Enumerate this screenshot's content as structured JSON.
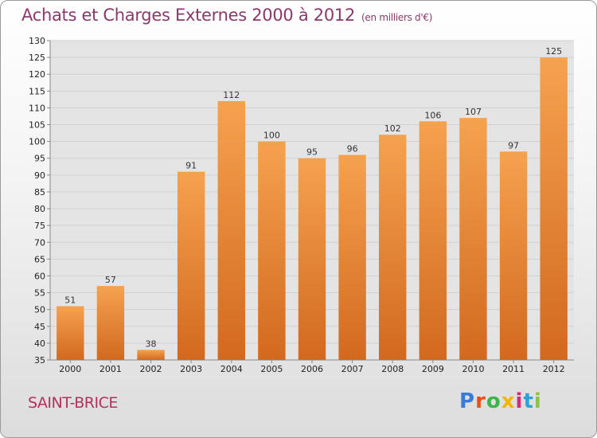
{
  "header": {
    "title": "Achats et Charges Externes 2000 à 2012",
    "unit": "(en milliers d'€)"
  },
  "footer": {
    "city": "SAINT-BRICE",
    "brand": "Proxiti",
    "brand_colors": [
      "#3a7bd5",
      "#e94e1b",
      "#3cb44b",
      "#f4b400",
      "#d62976",
      "#2ba3d9",
      "#8bc34a"
    ]
  },
  "colors": {
    "bar_top": "#f5a24f",
    "bar_bottom": "#d2691e",
    "axis": "#888888",
    "grid": "#d0d0d0",
    "plot_bg": "#e4e4e4"
  },
  "chart_data": {
    "type": "bar",
    "categories": [
      "2000",
      "2001",
      "2002",
      "2003",
      "2004",
      "2005",
      "2006",
      "2007",
      "2008",
      "2009",
      "2010",
      "2011",
      "2012"
    ],
    "values": [
      51,
      57,
      38,
      91,
      112,
      100,
      95,
      96,
      102,
      106,
      107,
      97,
      125
    ],
    "yticks": [
      35,
      40,
      45,
      50,
      55,
      60,
      65,
      70,
      75,
      80,
      85,
      90,
      95,
      100,
      105,
      110,
      115,
      120,
      125,
      130
    ],
    "ylim": [
      35,
      130
    ],
    "grid": true,
    "legend": "none"
  }
}
